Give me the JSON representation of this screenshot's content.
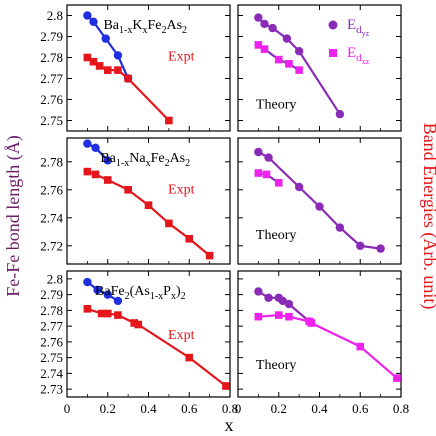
{
  "figure": {
    "left_axis_label": "Fe-Fe bond length (Å)",
    "right_axis_label": "Band Energies (Arb. unit)",
    "x_axis_label": "x",
    "colors": {
      "expt_blue": "#1f2fe0",
      "expt_red": "#e5161b",
      "theory_purple": "#8a2bb8",
      "theory_magenta": "#ee22ee",
      "left_label_color": "#6b1f6b",
      "right_label_color": "#e5161b",
      "frame": "#000000"
    }
  },
  "chart_data": [
    {
      "type": "line",
      "panel": "top-left",
      "compound_parts": [
        "Ba",
        "1-x",
        "K",
        "x",
        "Fe",
        "2",
        "As",
        "2"
      ],
      "tag": "Expt",
      "xlim": [
        0,
        0.8
      ],
      "ylim": [
        2.745,
        2.805
      ],
      "x_ticks": [
        0,
        0.2,
        0.4,
        0.6,
        0.8
      ],
      "x_tick_labels": [],
      "y_ticks": [
        2.75,
        2.76,
        2.77,
        2.78,
        2.79,
        2.8
      ],
      "y_tick_labels": [
        "2.75",
        "2.76",
        "2.77",
        "2.78",
        "2.79",
        "2.8"
      ],
      "series": [
        {
          "color": "#1f2fe0",
          "marker": "circle",
          "x": [
            0.1,
            0.13,
            0.19,
            0.25,
            0.3
          ],
          "y": [
            2.8,
            2.797,
            2.789,
            2.781,
            2.77
          ]
        },
        {
          "color": "#e5161b",
          "marker": "square",
          "x": [
            0.1,
            0.13,
            0.16,
            0.2,
            0.25,
            0.3,
            0.5
          ],
          "y": [
            2.78,
            2.778,
            2.776,
            2.774,
            2.774,
            2.77,
            2.75
          ]
        }
      ]
    },
    {
      "type": "line",
      "panel": "top-right",
      "tag": "Theory",
      "legend": [
        {
          "symbol": "E",
          "sub1": "d",
          "sub2": "yz",
          "color": "#8a2bb8",
          "marker": "circle"
        },
        {
          "symbol": "E",
          "sub1": "d",
          "sub2": "xz",
          "color": "#ee22ee",
          "marker": "square"
        }
      ],
      "xlim": [
        0,
        0.8
      ],
      "ylim": [
        2.745,
        2.805
      ],
      "x_ticks": [
        0,
        0.2,
        0.4,
        0.6,
        0.8
      ],
      "series": [
        {
          "color": "#8a2bb8",
          "marker": "circle",
          "x": [
            0.1,
            0.13,
            0.17,
            0.24,
            0.3,
            0.5
          ],
          "y": [
            2.799,
            2.796,
            2.794,
            2.789,
            2.783,
            2.753
          ]
        },
        {
          "color": "#8a2bb8",
          "marker": "square",
          "marker_color": "#ee22ee",
          "x": [
            0.1,
            0.13,
            0.2,
            0.25,
            0.3
          ],
          "y": [
            2.786,
            2.784,
            2.779,
            2.777,
            2.774
          ]
        }
      ]
    },
    {
      "type": "line",
      "panel": "middle-left",
      "compound_parts": [
        "Ba",
        "1-x",
        "Na",
        "x",
        "Fe",
        "2",
        "As",
        "2"
      ],
      "tag": "Expt",
      "xlim": [
        0,
        0.8
      ],
      "ylim": [
        2.707,
        2.797
      ],
      "x_ticks": [
        0,
        0.2,
        0.4,
        0.6,
        0.8
      ],
      "x_tick_labels": [],
      "y_ticks": [
        2.72,
        2.74,
        2.76,
        2.78
      ],
      "y_tick_labels": [
        "2.72",
        "2.74",
        "2.76",
        "2.78"
      ],
      "series": [
        {
          "color": "#1f2fe0",
          "marker": "circle",
          "x": [
            0.1,
            0.14,
            0.2
          ],
          "y": [
            2.793,
            2.79,
            2.781
          ]
        },
        {
          "color": "#e5161b",
          "marker": "square",
          "x": [
            0.1,
            0.14,
            0.2,
            0.3,
            0.4,
            0.5,
            0.6,
            0.7
          ],
          "y": [
            2.773,
            2.771,
            2.767,
            2.76,
            2.749,
            2.736,
            2.725,
            2.713
          ]
        }
      ]
    },
    {
      "type": "line",
      "panel": "middle-right",
      "tag": "Theory",
      "xlim": [
        0,
        0.8
      ],
      "ylim": [
        2.707,
        2.797
      ],
      "x_ticks": [
        0,
        0.2,
        0.4,
        0.6,
        0.8
      ],
      "series": [
        {
          "color": "#8a2bb8",
          "marker": "circle",
          "x": [
            0.1,
            0.15,
            0.3,
            0.4,
            0.5,
            0.6,
            0.7
          ],
          "y": [
            2.787,
            2.783,
            2.762,
            2.748,
            2.733,
            2.72,
            2.718
          ]
        },
        {
          "color": "#8a2bb8",
          "marker": "square",
          "marker_color": "#ee22ee",
          "x": [
            0.1,
            0.14,
            0.2
          ],
          "y": [
            2.772,
            2.771,
            2.765
          ]
        }
      ]
    },
    {
      "type": "line",
      "panel": "bottom-left",
      "compound_parts": [
        "BaFe",
        "2",
        "(As",
        "1-x",
        "P",
        "x",
        ")",
        "2"
      ],
      "tag": "Expt",
      "xlim": [
        0,
        0.8
      ],
      "ylim": [
        2.725,
        2.805
      ],
      "x_ticks": [
        0,
        0.2,
        0.4,
        0.6,
        0.8
      ],
      "x_tick_labels": [
        "0",
        "0.2",
        "0.4",
        "0.6",
        "0.8"
      ],
      "y_ticks": [
        2.73,
        2.74,
        2.75,
        2.76,
        2.77,
        2.78,
        2.79,
        2.8
      ],
      "y_tick_labels": [
        "2.73",
        "2.74",
        "2.75",
        "2.76",
        "2.77",
        "2.78",
        "2.79",
        "2.8"
      ],
      "series": [
        {
          "color": "#1f2fe0",
          "marker": "circle",
          "x": [
            0.1,
            0.15,
            0.2,
            0.25
          ],
          "y": [
            2.798,
            2.793,
            2.79,
            2.786
          ]
        },
        {
          "color": "#e5161b",
          "marker": "square",
          "x": [
            0.1,
            0.17,
            0.2,
            0.25,
            0.33,
            0.35,
            0.6,
            0.78
          ],
          "y": [
            2.781,
            2.778,
            2.778,
            2.777,
            2.772,
            2.771,
            2.75,
            2.732
          ]
        }
      ]
    },
    {
      "type": "line",
      "panel": "bottom-right",
      "tag": "Theory",
      "xlim": [
        0,
        0.8
      ],
      "ylim": [
        2.725,
        2.805
      ],
      "x_ticks": [
        0,
        0.2,
        0.4,
        0.6,
        0.8
      ],
      "x_tick_labels": [
        "0",
        "0.2",
        "0.4",
        "0.6",
        "0.8"
      ],
      "series": [
        {
          "color": "#8a2bb8",
          "marker": "circle",
          "x": [
            0.1,
            0.15,
            0.2,
            0.22,
            0.25,
            0.35
          ],
          "y": [
            2.792,
            2.788,
            2.788,
            2.786,
            2.784,
            2.773
          ]
        },
        {
          "color": "#ee22ee",
          "marker": "square",
          "x": [
            0.1,
            0.2,
            0.25,
            0.35,
            0.36,
            0.6,
            0.78
          ],
          "y": [
            2.776,
            2.777,
            2.776,
            2.773,
            2.772,
            2.757,
            2.737
          ]
        }
      ]
    }
  ]
}
